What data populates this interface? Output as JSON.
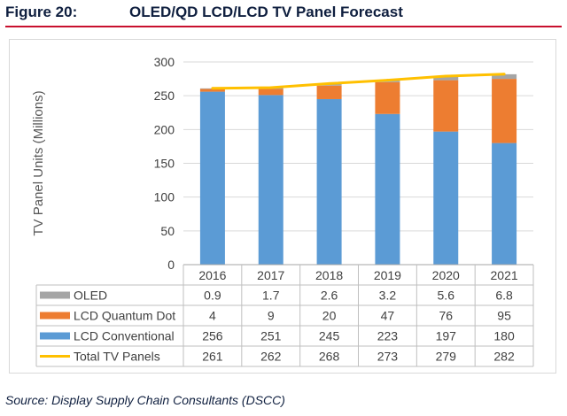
{
  "figure": {
    "number": "Figure 20:",
    "title": "OLED/QD LCD/LCD TV Panel Forecast"
  },
  "source": "Source: Display Supply Chain Consultants (DSCC)",
  "chart_data": {
    "type": "bar",
    "stacked": true,
    "categories": [
      "2016",
      "2017",
      "2018",
      "2019",
      "2020",
      "2021"
    ],
    "ylabel": "TV Panel Units (Millions)",
    "ylim": [
      0,
      300
    ],
    "yticks": [
      0,
      50,
      100,
      150,
      200,
      250,
      300
    ],
    "grid": true,
    "legend_placement": "data-table-left",
    "series": [
      {
        "name": "OLED",
        "kind": "bar",
        "color": "#a5a5a5",
        "values": [
          0.9,
          1.7,
          2.6,
          3.2,
          5.6,
          6.8
        ],
        "labels": [
          "0.9",
          "1.7",
          "2.6",
          "3.2",
          "5.6",
          "6.8"
        ]
      },
      {
        "name": "LCD Quantum Dot",
        "kind": "bar",
        "color": "#ed7d31",
        "values": [
          4,
          9,
          20,
          47,
          76,
          95
        ],
        "labels": [
          "4",
          "9",
          "20",
          "47",
          "76",
          "95"
        ]
      },
      {
        "name": "LCD Conventional",
        "kind": "bar",
        "color": "#5b9bd5",
        "values": [
          256,
          251,
          245,
          223,
          197,
          180
        ],
        "labels": [
          "256",
          "251",
          "245",
          "223",
          "197",
          "180"
        ]
      },
      {
        "name": "Total TV Panels",
        "kind": "line",
        "color": "#ffc000",
        "values": [
          261,
          262,
          268,
          273,
          279,
          282
        ],
        "labels": [
          "261",
          "262",
          "268",
          "273",
          "279",
          "282"
        ]
      }
    ]
  }
}
